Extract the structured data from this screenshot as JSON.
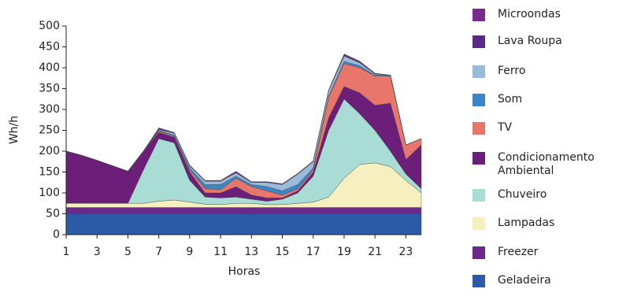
{
  "chart_data": {
    "type": "stacked-area",
    "x": [
      1,
      2,
      3,
      4,
      5,
      6,
      7,
      8,
      9,
      10,
      11,
      12,
      13,
      14,
      15,
      16,
      17,
      18,
      19,
      20,
      21,
      22,
      23,
      24
    ],
    "xlim": [
      1,
      24
    ],
    "xticks": [
      1,
      3,
      5,
      7,
      9,
      11,
      13,
      15,
      17,
      19,
      21,
      23
    ],
    "ylim": [
      0,
      500
    ],
    "yticks": [
      0,
      50,
      100,
      150,
      200,
      250,
      300,
      350,
      400,
      450,
      500
    ],
    "x_label": "Horas",
    "y_label": "Wh/h",
    "series": [
      {
        "name": "Geladeira",
        "color": "#2c5aa6",
        "values": [
          50,
          50,
          50,
          50,
          50,
          50,
          50,
          50,
          50,
          50,
          50,
          50,
          50,
          50,
          50,
          50,
          50,
          50,
          50,
          50,
          50,
          50,
          50,
          50
        ]
      },
      {
        "name": "Freezer",
        "color": "#6a2a8a",
        "values": [
          15,
          15,
          15,
          15,
          15,
          15,
          15,
          15,
          15,
          15,
          15,
          15,
          15,
          15,
          15,
          15,
          15,
          15,
          15,
          15,
          15,
          15,
          15,
          15
        ]
      },
      {
        "name": "Lampadas",
        "color": "#f6efbf",
        "values": [
          10,
          10,
          10,
          10,
          10,
          10,
          15,
          18,
          13,
          8,
          7,
          10,
          10,
          7,
          7,
          10,
          13,
          25,
          70,
          103,
          107,
          98,
          65,
          35
        ]
      },
      {
        "name": "Chuveiro",
        "color": "#a8dcd5",
        "values": [
          0,
          0,
          0,
          0,
          0,
          80,
          150,
          137,
          52,
          17,
          16,
          15,
          10,
          8,
          13,
          25,
          62,
          160,
          190,
          122,
          78,
          37,
          15,
          10
        ]
      },
      {
        "name": "Condicionamento Ambiental",
        "color": "#6b1f79",
        "values": [
          125,
          115,
          103,
          90,
          77,
          45,
          15,
          13,
          20,
          10,
          12,
          25,
          10,
          8,
          3,
          5,
          10,
          30,
          30,
          50,
          60,
          115,
          35,
          105
        ]
      },
      {
        "name": "TV",
        "color": "#e8766a",
        "values": [
          0,
          0,
          0,
          0,
          0,
          0,
          3,
          2,
          5,
          10,
          8,
          20,
          20,
          17,
          7,
          5,
          5,
          50,
          55,
          60,
          70,
          65,
          35,
          15
        ]
      },
      {
        "name": "Som",
        "color": "#3b86c6",
        "values": [
          0,
          0,
          0,
          0,
          0,
          0,
          2,
          3,
          5,
          10,
          12,
          5,
          5,
          10,
          10,
          10,
          5,
          2,
          5,
          5,
          2,
          2,
          0,
          0
        ]
      },
      {
        "name": "Ferro",
        "color": "#9bb9d9",
        "values": [
          0,
          0,
          0,
          0,
          0,
          0,
          2,
          5,
          5,
          8,
          8,
          8,
          5,
          10,
          15,
          25,
          15,
          13,
          13,
          7,
          3,
          0,
          0,
          0
        ]
      },
      {
        "name": "Lava Roupa",
        "color": "#5b2a86",
        "values": [
          0,
          0,
          0,
          0,
          0,
          0,
          1,
          1,
          1,
          1,
          1,
          1,
          1,
          1,
          1,
          1,
          1,
          1,
          2,
          2,
          1,
          0,
          0,
          0
        ]
      },
      {
        "name": "Microondas",
        "color": "#7a2a8c",
        "values": [
          0,
          0,
          0,
          0,
          0,
          0,
          3,
          1,
          1,
          1,
          1,
          3,
          1,
          1,
          1,
          1,
          1,
          1,
          3,
          2,
          1,
          0,
          0,
          0
        ]
      }
    ]
  }
}
